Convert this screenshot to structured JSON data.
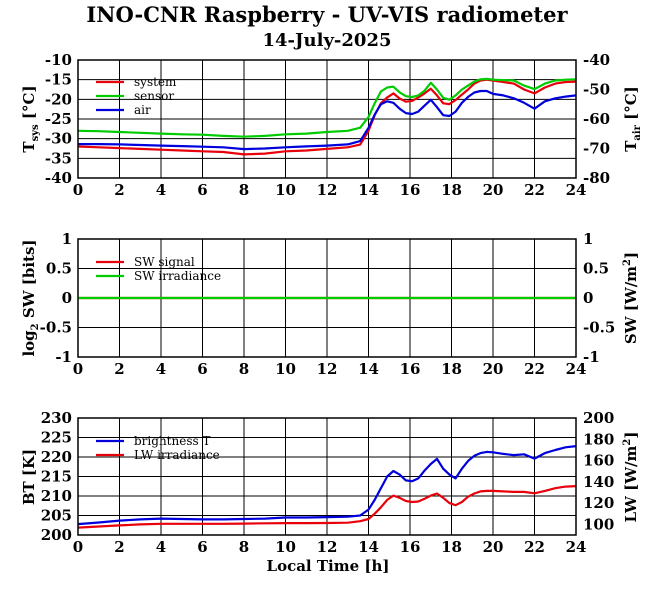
{
  "title": "INO-CNR Raspberry - UV-VIS radiometer",
  "date": "14-July-2025",
  "xlabel": "Local Time [h]",
  "x_ticks": [
    "0",
    "2",
    "4",
    "6",
    "8",
    "10",
    "12",
    "14",
    "16",
    "18",
    "20",
    "22",
    "24"
  ],
  "colors": {
    "red": "#e8000b",
    "green": "#00cc00",
    "blue": "#0000dd"
  },
  "chart_data": [
    {
      "type": "line",
      "title": "",
      "ylabel_left": {
        "main": "T",
        "sub": "sys",
        "unit": " [°C]"
      },
      "ylabel_right": {
        "main": "T",
        "sub": "air",
        "unit": " [°C]"
      },
      "xlim": [
        0,
        24
      ],
      "ylim_left": [
        -40,
        -10
      ],
      "ylim_right": [
        -80,
        -40
      ],
      "left_ticks": [
        "-10",
        "-15",
        "-20",
        "-25",
        "-30",
        "-35",
        "-40"
      ],
      "right_ticks": [
        "-40",
        "-50",
        "-60",
        "-70",
        "-80"
      ],
      "grid": true,
      "legend": "top-left",
      "series": [
        {
          "name": "system",
          "color": "#e8000b",
          "axis": "left",
          "x": [
            0,
            1,
            2,
            3,
            4,
            5,
            6,
            7,
            8,
            9,
            10,
            11,
            12,
            13,
            13.6,
            14,
            14.3,
            14.6,
            14.9,
            15.2,
            15.5,
            15.8,
            16.1,
            16.4,
            16.7,
            17,
            17.3,
            17.6,
            17.9,
            18.2,
            18.5,
            18.8,
            19.1,
            19.4,
            19.7,
            20,
            20.5,
            21,
            21.5,
            22,
            22.5,
            23,
            23.5,
            24
          ],
          "y": [
            -32,
            -32.2,
            -32.4,
            -32.6,
            -32.8,
            -33,
            -33.2,
            -33.4,
            -34,
            -33.8,
            -33.2,
            -33,
            -32.6,
            -32.2,
            -31.5,
            -28,
            -24,
            -21,
            -19.5,
            -18.5,
            -19.8,
            -20.6,
            -20.4,
            -19.5,
            -18.5,
            -17.3,
            -19,
            -21,
            -21.2,
            -20.2,
            -18.8,
            -17.5,
            -16,
            -15.2,
            -15,
            -15.2,
            -15.6,
            -16,
            -17.5,
            -18.5,
            -17,
            -16,
            -15.6,
            -15.5
          ]
        },
        {
          "name": "sensor",
          "color": "#00cc00",
          "axis": "left",
          "x": [
            0,
            1,
            2,
            3,
            4,
            5,
            6,
            7,
            8,
            9,
            10,
            11,
            12,
            13,
            13.6,
            14,
            14.3,
            14.6,
            14.9,
            15.2,
            15.5,
            15.8,
            16.1,
            16.4,
            16.7,
            17,
            17.3,
            17.6,
            17.9,
            18.2,
            18.5,
            18.8,
            19.1,
            19.4,
            19.7,
            20,
            20.5,
            21,
            21.5,
            22,
            22.5,
            23,
            23.5,
            24
          ],
          "y": [
            -28,
            -28.1,
            -28.3,
            -28.5,
            -28.7,
            -28.9,
            -29,
            -29.3,
            -29.5,
            -29.3,
            -28.9,
            -28.7,
            -28.3,
            -28,
            -27.2,
            -24.5,
            -21,
            -18,
            -17,
            -16.8,
            -18.2,
            -19.2,
            -19.4,
            -19,
            -17.8,
            -15.8,
            -17.5,
            -19.6,
            -20.1,
            -19,
            -17.5,
            -16.5,
            -15.5,
            -14.9,
            -14.8,
            -15,
            -15.1,
            -15.2,
            -16.5,
            -17.4,
            -16,
            -15.2,
            -15,
            -14.9
          ]
        },
        {
          "name": "air",
          "color": "#0000dd",
          "axis": "right",
          "x": [
            0,
            1,
            2,
            3,
            4,
            5,
            6,
            7,
            8,
            9,
            10,
            11,
            12,
            13,
            13.6,
            14,
            14.3,
            14.6,
            14.9,
            15.2,
            15.5,
            15.8,
            16.1,
            16.4,
            16.7,
            17,
            17.3,
            17.6,
            17.9,
            18.2,
            18.5,
            18.8,
            19.1,
            19.4,
            19.7,
            20,
            20.5,
            21,
            21.5,
            22,
            22.5,
            23,
            23.5,
            24
          ],
          "y": [
            -68.5,
            -68.5,
            -68.6,
            -68.8,
            -69,
            -69.2,
            -69.4,
            -69.6,
            -70.2,
            -70,
            -69.6,
            -69.3,
            -69,
            -68.6,
            -67.5,
            -63,
            -58.5,
            -55,
            -54,
            -54.5,
            -56.5,
            -58,
            -58.3,
            -57.5,
            -55.5,
            -53.5,
            -56,
            -58.7,
            -59,
            -57.5,
            -54.5,
            -52.5,
            -51,
            -50.5,
            -50.5,
            -51.5,
            -52,
            -53,
            -54.5,
            -56.5,
            -54,
            -53,
            -52.4,
            -52
          ]
        }
      ]
    },
    {
      "type": "line",
      "title": "",
      "ylabel_left": {
        "main": "log",
        "sub": "2",
        "unit": " SW [bits]"
      },
      "ylabel_right": {
        "main": "SW [W/m",
        "sup": "2",
        "unit": "]"
      },
      "xlim": [
        0,
        24
      ],
      "ylim_left": [
        -1,
        1
      ],
      "ylim_right": [
        -1,
        1
      ],
      "left_ticks": [
        "1",
        "0.5",
        "0",
        "-0.5",
        "-1"
      ],
      "right_ticks": [
        "1",
        "0.5",
        "0",
        "-0.5",
        "-1"
      ],
      "grid": true,
      "legend": "top-left",
      "series": [
        {
          "name": "SW signal",
          "color": "#e8000b",
          "axis": "left",
          "x": [
            0,
            24
          ],
          "y": [
            0,
            0
          ]
        },
        {
          "name": "SW irradiance",
          "color": "#00cc00",
          "axis": "right",
          "x": [
            0,
            24
          ],
          "y": [
            0,
            0
          ]
        }
      ]
    },
    {
      "type": "line",
      "title": "",
      "ylabel_left": {
        "main": "BT [K]"
      },
      "ylabel_right": {
        "main": "LW [W/m",
        "sup": "2",
        "unit": "]"
      },
      "xlim": [
        0,
        24
      ],
      "ylim_left": [
        200,
        230
      ],
      "ylim_right": [
        90,
        200
      ],
      "left_ticks": [
        "230",
        "225",
        "220",
        "215",
        "210",
        "205",
        "200"
      ],
      "right_ticks": [
        "200",
        "180",
        "160",
        "140",
        "120",
        "100"
      ],
      "grid": true,
      "legend": "top-left",
      "series": [
        {
          "name": "brightness T",
          "color": "#0000dd",
          "axis": "left",
          "x": [
            0,
            1,
            2,
            3,
            4,
            5,
            6,
            7,
            8,
            9,
            10,
            11,
            12,
            13,
            13.6,
            14,
            14.3,
            14.6,
            14.9,
            15.2,
            15.5,
            15.8,
            16.1,
            16.4,
            16.7,
            17,
            17.3,
            17.6,
            17.9,
            18.2,
            18.5,
            18.8,
            19.1,
            19.4,
            19.7,
            20,
            20.5,
            21,
            21.5,
            22,
            22.5,
            23,
            23.5,
            24
          ],
          "y": [
            202.8,
            203.2,
            203.7,
            204,
            204.2,
            204.1,
            204,
            204,
            204.1,
            204.2,
            204.5,
            204.5,
            204.6,
            204.7,
            205,
            206.5,
            209,
            212,
            215,
            216.4,
            215.5,
            214,
            213.8,
            214.5,
            216.5,
            218.2,
            219.5,
            217,
            215.5,
            214.5,
            217,
            219,
            220.3,
            221,
            221.3,
            221.2,
            220.8,
            220.5,
            220.7,
            219.6,
            221,
            221.8,
            222.5,
            222.8
          ]
        },
        {
          "name": "LW irradiance",
          "color": "#e8000b",
          "axis": "right",
          "x": [
            0,
            1,
            2,
            3,
            4,
            5,
            6,
            7,
            8,
            9,
            10,
            11,
            12,
            13,
            13.6,
            14,
            14.3,
            14.6,
            14.9,
            15.2,
            15.5,
            15.8,
            16.1,
            16.4,
            16.7,
            17,
            17.3,
            17.6,
            17.9,
            18.2,
            18.5,
            18.8,
            19.1,
            19.4,
            19.7,
            20,
            20.5,
            21,
            21.5,
            22,
            22.5,
            23,
            23.5,
            24
          ],
          "y": [
            97,
            98,
            99,
            100,
            100.5,
            100.5,
            100.5,
            100.5,
            100.7,
            101,
            101.2,
            101.2,
            101.3,
            101.6,
            103,
            105,
            110,
            116,
            123,
            127,
            125,
            122,
            121,
            121.5,
            124,
            127,
            129,
            125,
            120,
            118,
            121,
            126,
            129,
            131,
            131.5,
            131.5,
            131,
            130.5,
            130.5,
            129.2,
            131.5,
            134,
            135.5,
            136
          ]
        }
      ]
    }
  ]
}
